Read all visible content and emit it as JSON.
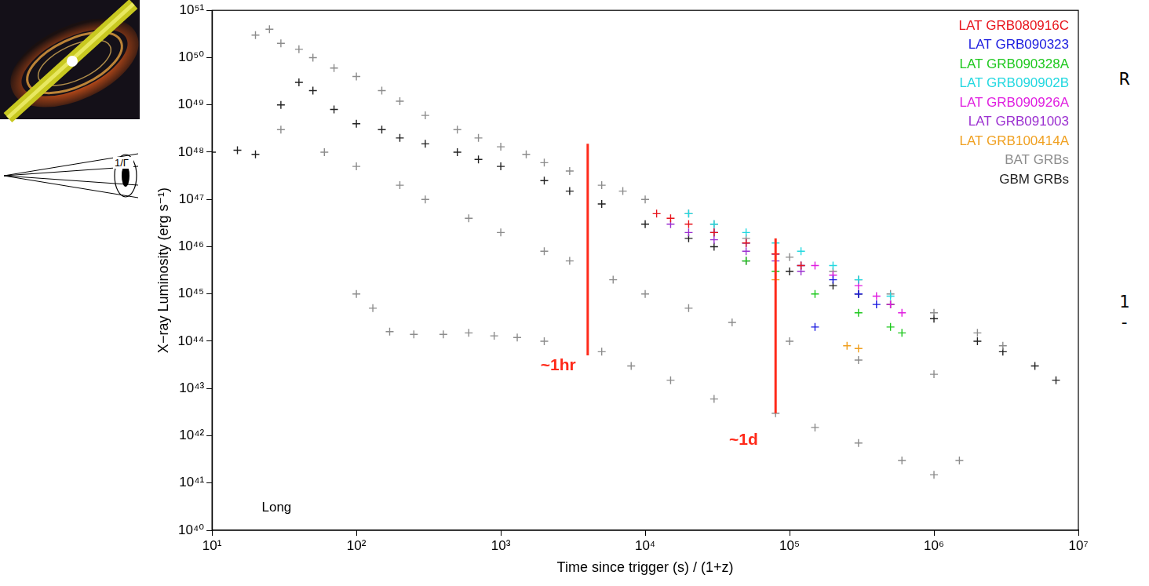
{
  "chart_data": {
    "type": "scatter",
    "x_label": "Time since trigger (s) / (1+z)",
    "y_label": "X−ray Luminosity (erg s⁻¹)",
    "log": true,
    "grid": false,
    "legend": "upper right",
    "marker": "cross",
    "xlim": [
      10,
      10000000
    ],
    "xticks": [
      {
        "value": 10,
        "label": "10¹"
      },
      {
        "value": 100,
        "label": "10²"
      },
      {
        "value": 1000,
        "label": "10³"
      },
      {
        "value": 10000,
        "label": "10⁴"
      },
      {
        "value": 100000,
        "label": "10⁵"
      },
      {
        "value": 1000000,
        "label": "10⁶"
      },
      {
        "value": 10000000,
        "label": "10⁷"
      }
    ],
    "ylim": [
      1e+40,
      1e+51
    ],
    "yticks": [
      {
        "value": 1e+40,
        "label": "10⁴⁰"
      },
      {
        "value": 1e+41,
        "label": "10⁴¹"
      },
      {
        "value": 1e+42,
        "label": "10⁴²"
      },
      {
        "value": 1e+43,
        "label": "10⁴³"
      },
      {
        "value": 1e+44,
        "label": "10⁴⁴"
      },
      {
        "value": 1e+45,
        "label": "10⁴⁵"
      },
      {
        "value": 1e+46,
        "label": "10⁴⁶"
      },
      {
        "value": 1e+47,
        "label": "10⁴⁷"
      },
      {
        "value": 1e+48,
        "label": "10⁴⁸"
      },
      {
        "value": 1e+49,
        "label": "10⁴⁹"
      },
      {
        "value": 1e+50,
        "label": "10⁵⁰"
      },
      {
        "value": 1e+51,
        "label": "10⁵¹"
      }
    ],
    "series": [
      {
        "name": "LAT GRB080916C",
        "color": "#e8141c",
        "x": [
          12000,
          15000,
          20000,
          30000,
          50000,
          80000,
          120000
        ],
        "values": [
          5e+46,
          4e+46,
          3e+46,
          2e+46,
          1.2e+46,
          7e+45,
          4e+45
        ]
      },
      {
        "name": "LAT GRB090323",
        "color": "#1a1adf",
        "x": [
          30000,
          50000,
          80000,
          120000,
          150000,
          200000,
          300000,
          400000
        ],
        "values": [
          2e+46,
          1.2e+46,
          7e+45,
          4e+45,
          2e+44,
          2e+45,
          1e+45,
          6e+44
        ]
      },
      {
        "name": "LAT GRB090328A",
        "color": "#1ec81e",
        "x": [
          50000,
          80000,
          150000,
          300000,
          500000,
          600000
        ],
        "values": [
          5e+45,
          3e+45,
          1e+45,
          4e+44,
          2e+44,
          1.5e+44
        ]
      },
      {
        "name": "LAT GRB090902B",
        "color": "#22d8e0",
        "x": [
          20000,
          30000,
          50000,
          80000,
          120000,
          200000,
          300000,
          500000
        ],
        "values": [
          5e+46,
          3e+46,
          2e+46,
          1.2e+46,
          8e+45,
          4e+45,
          2e+45,
          9e+44
        ]
      },
      {
        "name": "LAT GRB090926A",
        "color": "#e01ee0",
        "x": [
          150000,
          200000,
          300000,
          400000,
          500000,
          600000
        ],
        "values": [
          4e+45,
          2.5e+45,
          1.5e+45,
          9e+44,
          6e+44,
          4e+44
        ]
      },
      {
        "name": "LAT GRB091003",
        "color": "#9b30d0",
        "x": [
          15000,
          20000,
          30000,
          50000,
          80000,
          120000
        ],
        "values": [
          3e+46,
          2e+46,
          1.4e+46,
          8e+45,
          5e+45,
          3e+45
        ]
      },
      {
        "name": "LAT GRB100414A",
        "color": "#f0a020",
        "x": [
          80000,
          250000,
          300000
        ],
        "values": [
          2e+45,
          8e+43,
          7e+43
        ]
      },
      {
        "name": "BAT GRBs",
        "color": "#8c8c8c",
        "x": [
          20,
          25,
          30,
          40,
          50,
          70,
          100,
          150,
          200,
          300,
          500,
          700,
          1000,
          1500,
          2000,
          3000,
          5000,
          7000,
          10000,
          20000,
          30000,
          50000,
          100000,
          200000,
          300000,
          500000,
          1000000,
          2000000,
          3000000,
          30,
          60,
          100,
          200,
          300,
          600,
          1000,
          2000,
          3000,
          6000,
          10000,
          20000,
          40000,
          100000,
          300000,
          1000000,
          100,
          130,
          170,
          250,
          400,
          600,
          900,
          1300,
          2000,
          5000,
          8000,
          15000,
          30000,
          80000,
          150000,
          300000,
          600000,
          1000000,
          1500000
        ],
        "values": [
          3e+50,
          4e+50,
          2e+50,
          1.5e+50,
          1e+50,
          6e+49,
          4e+49,
          2e+49,
          1.2e+49,
          6e+48,
          3e+48,
          2e+48,
          1.3e+48,
          9e+47,
          6e+47,
          4e+47,
          2e+47,
          1.5e+47,
          1e+47,
          5e+46,
          3e+46,
          1.5e+46,
          6e+45,
          3e+45,
          2e+45,
          1e+45,
          4e+44,
          1.5e+44,
          8e+43,
          3e+48,
          1e+48,
          5e+47,
          2e+47,
          1e+47,
          4e+46,
          2e+46,
          8e+45,
          5e+45,
          2e+45,
          1e+45,
          5e+44,
          2.5e+44,
          1e+44,
          4e+43,
          2e+43,
          1e+45,
          5e+44,
          1.6e+44,
          1.4e+44,
          1.4e+44,
          1.5e+44,
          1.3e+44,
          1.2e+44,
          1e+44,
          6e+43,
          3e+43,
          1.5e+43,
          6e+42,
          3e+42,
          1.5e+42,
          7e+41,
          3e+41,
          1.5e+41,
          3e+41
        ]
      },
      {
        "name": "GBM GRBs",
        "color": "#222222",
        "x": [
          10,
          15,
          20,
          30,
          40,
          50,
          70,
          100,
          150,
          200,
          300,
          500,
          700,
          1000,
          2000,
          3000,
          5000,
          10000,
          20000,
          30000,
          50000,
          100000,
          200000,
          300000,
          500000,
          1000000,
          2000000,
          3000000,
          5000000,
          7000000
        ],
        "values": [
          1e+48,
          1.1e+48,
          9e+47,
          1e+49,
          3e+49,
          2e+49,
          8e+48,
          4e+48,
          3e+48,
          2e+48,
          1.5e+48,
          1e+48,
          7e+47,
          5e+47,
          2.5e+47,
          1.5e+47,
          8e+46,
          3e+46,
          1.5e+46,
          1e+46,
          5e+45,
          3e+45,
          1.5e+45,
          1e+45,
          6e+44,
          3e+44,
          1e+44,
          6e+43,
          3e+43,
          1.5e+43
        ]
      }
    ],
    "lines": [
      {
        "x": 4000,
        "y": [
          5e+43,
          1.5e+48
        ],
        "color": "#ff2a1a"
      },
      {
        "x": 80000,
        "y": [
          3e+42,
          1.5e+46
        ],
        "color": "#ff2a1a"
      }
    ],
    "annotations": [
      {
        "text": "~1hr",
        "x": 2500,
        "y": 3e+43,
        "color": "#ff2a1a"
      },
      {
        "text": "~1d",
        "x": 48000,
        "y": 8e+41,
        "color": "#ff2a1a"
      },
      {
        "text": "Long",
        "x": 28,
        "y": 3e+40,
        "color": "#000000"
      }
    ]
  },
  "diagram": {
    "label": "1/Γ"
  },
  "margin_text": [
    "R",
    "1",
    "-"
  ]
}
